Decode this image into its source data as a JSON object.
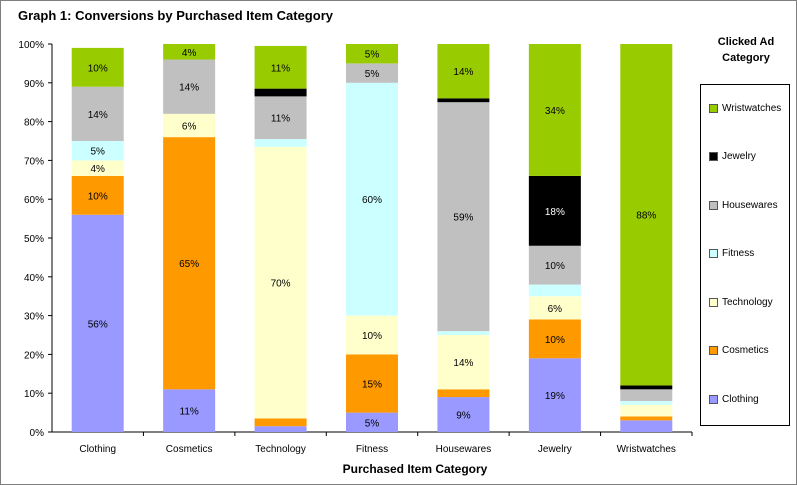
{
  "chart_data": {
    "type": "bar",
    "stacked": true,
    "title": "Graph 1: Conversions by Purchased Item Category",
    "xlabel": "Purchased Item Category",
    "ylabel": "",
    "ylim": [
      0,
      100
    ],
    "yticks": [
      "0%",
      "10%",
      "20%",
      "30%",
      "40%",
      "50%",
      "60%",
      "70%",
      "80%",
      "90%",
      "100%"
    ],
    "categories": [
      "Clothing",
      "Cosmetics",
      "Technology",
      "Fitness",
      "Housewares",
      "Jewelry",
      "Wristwatches"
    ],
    "legend_title": "Clicked Ad Category",
    "legend_position": "right",
    "series": [
      {
        "name": "Clothing",
        "color": "#9999ff",
        "values": [
          56,
          11,
          1.5,
          5,
          9,
          19,
          3
        ]
      },
      {
        "name": "Cosmetics",
        "color": "#ff9900",
        "values": [
          10,
          65,
          2,
          15,
          2,
          10,
          1
        ]
      },
      {
        "name": "Technology",
        "color": "#ffffcc",
        "values": [
          4,
          6,
          70,
          10,
          14,
          6,
          3
        ]
      },
      {
        "name": "Fitness",
        "color": "#ccffff",
        "values": [
          5,
          0,
          2,
          60,
          1,
          3,
          1
        ]
      },
      {
        "name": "Housewares",
        "color": "#c0c0c0",
        "values": [
          14,
          14,
          11,
          5,
          59,
          10,
          3
        ]
      },
      {
        "name": "Jewelry",
        "color": "#000000",
        "values": [
          0,
          0,
          2,
          0,
          1,
          18,
          1
        ]
      },
      {
        "name": "Wristwatches",
        "color": "#99cc00",
        "values": [
          10,
          4,
          11,
          5,
          14,
          34,
          88
        ]
      }
    ],
    "data_labels": [
      [
        "56%",
        "10%",
        "4%",
        "5%",
        "14%",
        "",
        "10%"
      ],
      [
        "11%",
        "65%",
        "6%",
        "",
        "14%",
        "",
        "4%"
      ],
      [
        "",
        "",
        "70%",
        "",
        "11%",
        "",
        "11%"
      ],
      [
        "5%",
        "15%",
        "10%",
        "60%",
        "5%",
        "",
        "5%"
      ],
      [
        "9%",
        "",
        "14%",
        "",
        "59%",
        "",
        "14%"
      ],
      [
        "19%",
        "10%",
        "6%",
        "",
        "10%",
        "18%",
        "34%"
      ],
      [
        "",
        "",
        "",
        "",
        "",
        "",
        "88%"
      ]
    ]
  }
}
